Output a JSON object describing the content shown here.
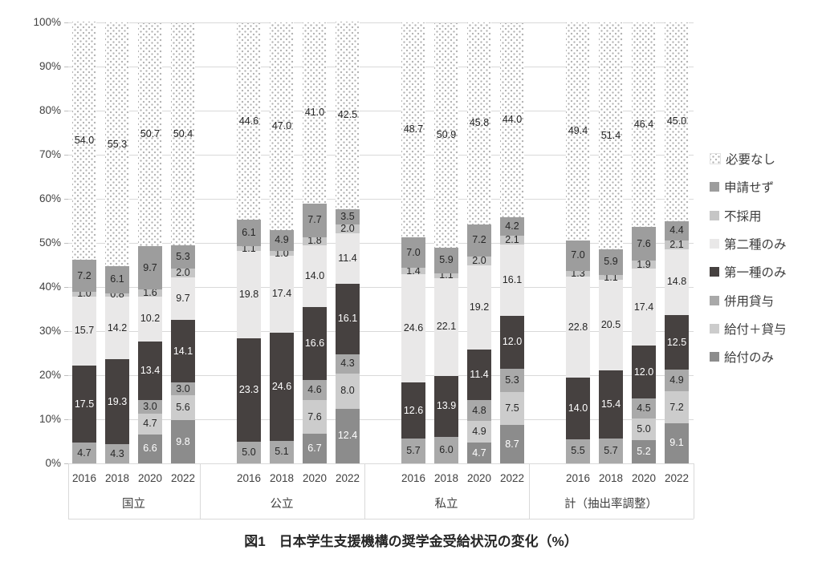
{
  "chart_data": {
    "type": "stacked_bar",
    "title": "図1　日本学生支援機構の奨学金受給状況の変化（%）",
    "unit": "%",
    "y_axis": {
      "min": 0,
      "max": 100,
      "grid": true,
      "ticks": [
        "100%",
        "90%",
        "80%",
        "70%",
        "60%",
        "50%",
        "40%",
        "30%",
        "20%",
        "10%",
        "0%"
      ]
    },
    "legend_position": "right",
    "legend_order_note": "legend shown top-to-bottom is reverse of stacking order",
    "series": [
      {
        "name": "給付のみ",
        "color": "#8C8C8C",
        "label_color": "#FFFFFF"
      },
      {
        "name": "給付＋貸与",
        "color": "#CCCCCC",
        "label_color": "#262626"
      },
      {
        "name": "併用貸与",
        "color": "#A9A9A9",
        "label_color": "#262626"
      },
      {
        "name": "第一種のみ",
        "color": "#464140",
        "label_color": "#FFFFFF"
      },
      {
        "name": "第二種のみ",
        "color": "#E9E8E8",
        "label_color": "#262626"
      },
      {
        "name": "不採用",
        "color": "#C6C6C6",
        "label_color": "#262626"
      },
      {
        "name": "申請せず",
        "color": "#9D9D9D",
        "label_color": "#262626"
      },
      {
        "name": "必要なし",
        "color": "#FFFFFF",
        "pattern": "dots",
        "dot_color": "#B2B2B2",
        "label_color": "#262626"
      }
    ],
    "groups": [
      {
        "label": "国立",
        "bars": [
          {
            "year": "2016",
            "values": [
              null,
              null,
              4.7,
              17.5,
              15.7,
              1.0,
              7.2,
              54.0
            ]
          },
          {
            "year": "2018",
            "values": [
              null,
              null,
              4.3,
              19.3,
              14.2,
              0.8,
              6.1,
              55.3
            ]
          },
          {
            "year": "2020",
            "values": [
              6.6,
              4.7,
              3.0,
              13.4,
              10.2,
              1.6,
              9.7,
              50.7
            ]
          },
          {
            "year": "2022",
            "values": [
              9.8,
              5.6,
              3.0,
              14.1,
              9.7,
              2.0,
              5.3,
              50.4
            ]
          }
        ]
      },
      {
        "label": "公立",
        "bars": [
          {
            "year": "2016",
            "values": [
              null,
              null,
              5.0,
              23.3,
              19.8,
              1.1,
              6.1,
              44.6
            ]
          },
          {
            "year": "2018",
            "values": [
              null,
              null,
              5.1,
              24.6,
              17.4,
              1.0,
              4.9,
              47.0
            ]
          },
          {
            "year": "2020",
            "values": [
              6.7,
              7.6,
              4.6,
              16.6,
              14.0,
              1.8,
              7.7,
              41.0
            ]
          },
          {
            "year": "2022",
            "values": [
              12.4,
              8.0,
              4.3,
              16.1,
              11.4,
              2.0,
              3.5,
              42.5
            ]
          }
        ]
      },
      {
        "label": "私立",
        "bars": [
          {
            "year": "2016",
            "values": [
              null,
              null,
              5.7,
              12.6,
              24.6,
              1.4,
              7.0,
              48.7
            ]
          },
          {
            "year": "2018",
            "values": [
              null,
              null,
              6.0,
              13.9,
              22.1,
              1.1,
              5.9,
              50.9
            ]
          },
          {
            "year": "2020",
            "values": [
              4.7,
              4.9,
              4.8,
              11.4,
              19.2,
              2.0,
              7.2,
              45.8
            ]
          },
          {
            "year": "2022",
            "values": [
              8.7,
              7.5,
              5.3,
              12.0,
              16.1,
              2.1,
              4.2,
              44.0
            ]
          }
        ]
      },
      {
        "label": "計（抽出率調整）",
        "bars": [
          {
            "year": "2016",
            "values": [
              null,
              null,
              5.5,
              14.0,
              22.8,
              1.3,
              7.0,
              49.4
            ]
          },
          {
            "year": "2018",
            "values": [
              null,
              null,
              5.7,
              15.4,
              20.5,
              1.1,
              5.9,
              51.4
            ]
          },
          {
            "year": "2020",
            "values": [
              5.2,
              5.0,
              4.5,
              12.0,
              17.4,
              1.9,
              7.6,
              46.4
            ]
          },
          {
            "year": "2022",
            "values": [
              9.1,
              7.2,
              4.9,
              12.5,
              14.8,
              2.1,
              4.4,
              45.0
            ]
          }
        ]
      }
    ]
  }
}
